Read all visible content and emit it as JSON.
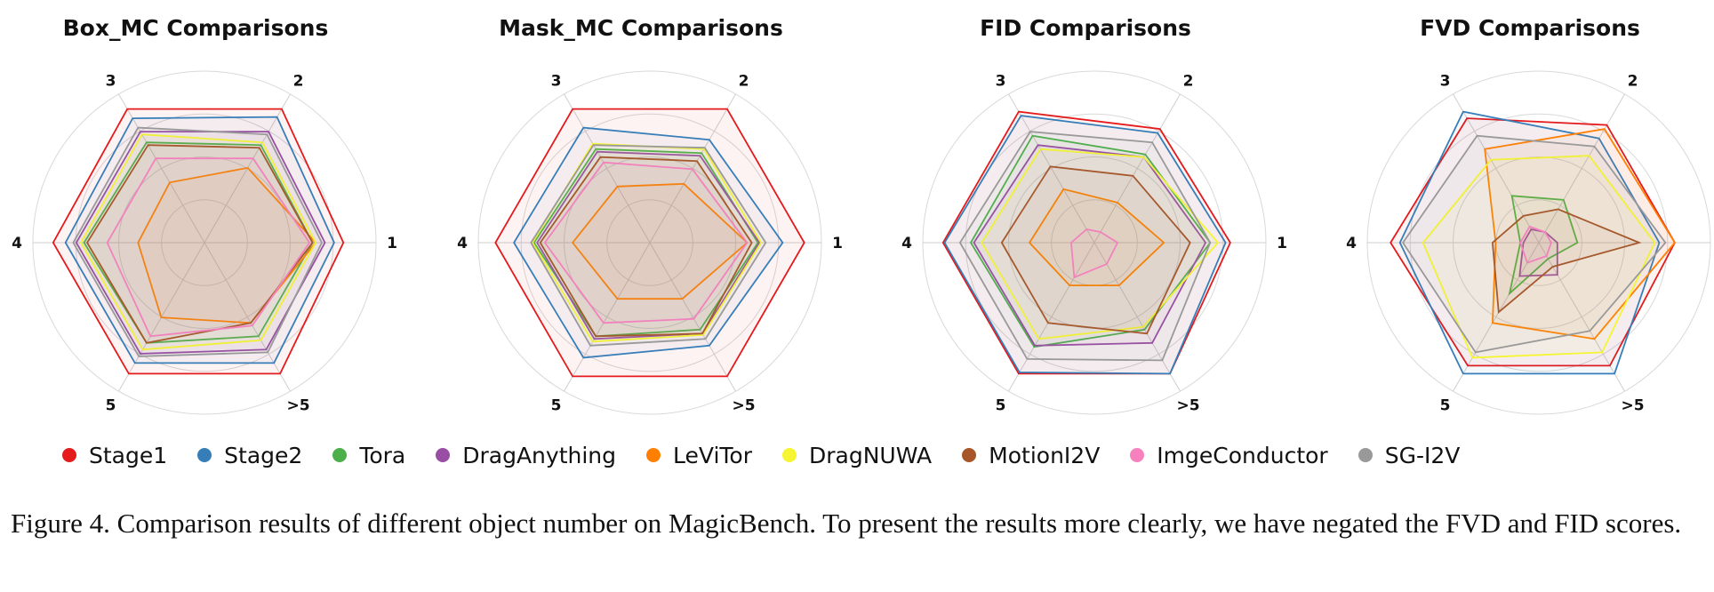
{
  "chart_data": [
    {
      "type": "radar",
      "title": "Box_MC Comparisons",
      "axes": [
        "1",
        "2",
        "3",
        "4",
        "5",
        ">5"
      ],
      "rlim": [
        0,
        1
      ],
      "grid": true,
      "series": [
        {
          "name": "Stage1",
          "values": [
            0.9,
            1.0,
            1.0,
            0.98,
            0.98,
            0.98
          ]
        },
        {
          "name": "Stage2",
          "values": [
            0.84,
            0.94,
            0.93,
            0.9,
            0.9,
            0.9
          ]
        },
        {
          "name": "Tora",
          "values": [
            0.7,
            0.73,
            0.75,
            0.78,
            0.75,
            0.7
          ]
        },
        {
          "name": "DragAnything",
          "values": [
            0.78,
            0.83,
            0.83,
            0.83,
            0.83,
            0.8
          ]
        },
        {
          "name": "LeViTor",
          "values": [
            0.72,
            0.56,
            0.45,
            0.43,
            0.56,
            0.6
          ]
        },
        {
          "name": "DragNUWA",
          "values": [
            0.72,
            0.75,
            0.81,
            0.8,
            0.8,
            0.73
          ]
        },
        {
          "name": "MotionI2V",
          "values": [
            0.7,
            0.71,
            0.73,
            0.76,
            0.75,
            0.6
          ]
        },
        {
          "name": "ImgeConductor",
          "values": [
            0.68,
            0.63,
            0.63,
            0.63,
            0.7,
            0.62
          ]
        },
        {
          "name": "SG-I2V",
          "values": [
            0.76,
            0.81,
            0.86,
            0.85,
            0.85,
            0.82
          ]
        }
      ]
    },
    {
      "type": "radar",
      "title": "Mask_MC Comparisons",
      "axes": [
        "1",
        "2",
        "3",
        "4",
        "5",
        ">5"
      ],
      "rlim": [
        0,
        1
      ],
      "grid": true,
      "series": [
        {
          "name": "Stage1",
          "values": [
            1.0,
            1.0,
            1.0,
            1.0,
            1.0,
            1.0
          ]
        },
        {
          "name": "Stage2",
          "values": [
            0.86,
            0.77,
            0.86,
            0.88,
            0.86,
            0.77
          ]
        },
        {
          "name": "Tora",
          "values": [
            0.7,
            0.67,
            0.7,
            0.75,
            0.7,
            0.65
          ]
        },
        {
          "name": "DragAnything",
          "values": [
            0.71,
            0.65,
            0.68,
            0.73,
            0.72,
            0.68
          ]
        },
        {
          "name": "LeViTor",
          "values": [
            0.63,
            0.44,
            0.42,
            0.5,
            0.42,
            0.42
          ]
        },
        {
          "name": "DragNUWA",
          "values": [
            0.72,
            0.7,
            0.74,
            0.76,
            0.74,
            0.69
          ]
        },
        {
          "name": "MotionI2V",
          "values": [
            0.66,
            0.61,
            0.64,
            0.71,
            0.7,
            0.68
          ]
        },
        {
          "name": "ImgeConductor",
          "values": [
            0.63,
            0.55,
            0.6,
            0.68,
            0.6,
            0.57
          ]
        },
        {
          "name": "SG-I2V",
          "values": [
            0.75,
            0.71,
            0.73,
            0.77,
            0.77,
            0.72
          ]
        }
      ]
    },
    {
      "type": "radar",
      "title": "FID Comparisons",
      "axes": [
        "1",
        "2",
        "3",
        "4",
        "5",
        ">5"
      ],
      "rlim": [
        0,
        1
      ],
      "grid": true,
      "series": [
        {
          "name": "Stage1",
          "values": [
            0.88,
            0.85,
            0.98,
            0.98,
            0.98,
            0.98
          ]
        },
        {
          "name": "Stage2",
          "values": [
            0.85,
            0.82,
            0.95,
            0.97,
            0.97,
            0.98
          ]
        },
        {
          "name": "Tora",
          "values": [
            0.75,
            0.66,
            0.8,
            0.8,
            0.78,
            0.65
          ]
        },
        {
          "name": "DragAnything",
          "values": [
            0.72,
            0.64,
            0.73,
            0.78,
            0.77,
            0.75
          ]
        },
        {
          "name": "LeViTor",
          "values": [
            0.45,
            0.3,
            0.4,
            0.42,
            0.32,
            0.32
          ]
        },
        {
          "name": "DragNUWA",
          "values": [
            0.8,
            0.64,
            0.7,
            0.73,
            0.72,
            0.63
          ]
        },
        {
          "name": "MotionI2V",
          "values": [
            0.62,
            0.5,
            0.57,
            0.6,
            0.6,
            0.68
          ]
        },
        {
          "name": "ImgeConductor",
          "values": [
            0.15,
            0.08,
            0.1,
            0.15,
            0.26,
            0.16
          ]
        },
        {
          "name": "SG-I2V",
          "values": [
            0.75,
            0.75,
            0.83,
            0.87,
            0.87,
            0.88
          ]
        }
      ]
    },
    {
      "type": "radar",
      "title": "FVD Comparisons",
      "axes": [
        "1",
        "2",
        "3",
        "4",
        "5",
        ">5"
      ],
      "rlim": [
        0,
        1
      ],
      "grid": true,
      "series": [
        {
          "name": "Stage1",
          "values": [
            0.88,
            0.88,
            0.93,
            0.96,
            0.92,
            0.92
          ]
        },
        {
          "name": "Stage2",
          "values": [
            0.78,
            0.78,
            0.98,
            0.9,
            0.98,
            0.98
          ]
        },
        {
          "name": "Tora",
          "values": [
            0.25,
            0.32,
            0.35,
            0.12,
            0.38,
            0.12
          ]
        },
        {
          "name": "DragAnything",
          "values": [
            0.12,
            0.08,
            0.1,
            0.1,
            0.25,
            0.24
          ]
        },
        {
          "name": "LeViTor",
          "values": [
            0.88,
            0.85,
            0.7,
            0.28,
            0.6,
            0.72
          ]
        },
        {
          "name": "DragNUWA",
          "values": [
            0.75,
            0.65,
            0.62,
            0.75,
            0.86,
            0.82
          ]
        },
        {
          "name": "MotionI2V",
          "values": [
            0.65,
            0.25,
            0.2,
            0.3,
            0.52,
            0.18
          ]
        },
        {
          "name": "ImgeConductor",
          "values": [
            0.08,
            0.08,
            0.12,
            0.12,
            0.15,
            0.1
          ]
        },
        {
          "name": "SG-I2V",
          "values": [
            0.82,
            0.72,
            0.8,
            0.88,
            0.82,
            0.66
          ]
        }
      ]
    }
  ],
  "legend": [
    {
      "name": "Stage1",
      "color": "#e41a1c"
    },
    {
      "name": "Stage2",
      "color": "#377eb8"
    },
    {
      "name": "Tora",
      "color": "#4daf4a"
    },
    {
      "name": "DragAnything",
      "color": "#984ea3"
    },
    {
      "name": "LeViTor",
      "color": "#ff7f00"
    },
    {
      "name": "DragNUWA",
      "color": "#f5f531"
    },
    {
      "name": "MotionI2V",
      "color": "#a65628"
    },
    {
      "name": "ImgeConductor",
      "color": "#f781bf"
    },
    {
      "name": "SG-I2V",
      "color": "#999999"
    }
  ],
  "caption": "Figure 4. Comparison results of different object number on MagicBench. To present the results more clearly, we have negated the FVD and FID scores."
}
